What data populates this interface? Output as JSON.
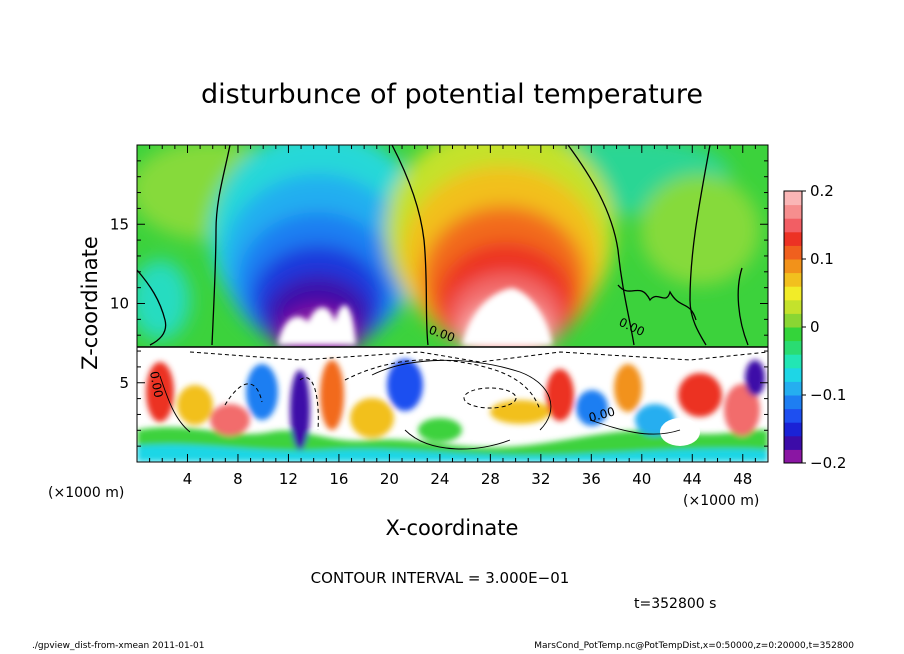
{
  "chart_data": {
    "type": "heatmap",
    "title": "disturbunce of potential temperature",
    "xlabel": "X-coordinate",
    "ylabel": "Z-coordinate",
    "x_unit_label": "(×1000 m)",
    "z_unit_label": "(×1000 m)",
    "xlim": [
      0,
      50
    ],
    "ylim": [
      0,
      20
    ],
    "x_ticks": [
      "4",
      "8",
      "12",
      "16",
      "20",
      "24",
      "28",
      "32",
      "36",
      "40",
      "44",
      "48"
    ],
    "y_ticks": [
      "5",
      "10",
      "15"
    ],
    "colorbar": {
      "range": [
        -0.2,
        0.2
      ],
      "tick_labels": [
        "0.2",
        "0.1",
        "0",
        "−0.1",
        "−0.2"
      ],
      "colors": [
        "#8a16a3",
        "#3c0ca8",
        "#1a22d6",
        "#1e4ff0",
        "#1e7ef2",
        "#25aef0",
        "#1ed6e6",
        "#22e6b4",
        "#2adc72",
        "#34d43a",
        "#8ad633",
        "#c4e22c",
        "#f2ec28",
        "#f2c01e",
        "#f2921a",
        "#f0601e",
        "#ec3224",
        "#f25e64",
        "#f68e8e",
        "#fab6b6"
      ]
    },
    "contour_labels": [
      "0.00",
      "0.00",
      "0.00",
      "0.00"
    ],
    "contour_interval_text": "CONTOUR INTERVAL = 3.000E−01",
    "time_text": "t=352800 s",
    "features": [
      {
        "name": "cold-anomaly",
        "x_center": 16,
        "z_center": 10,
        "value": -0.2
      },
      {
        "name": "warm-anomaly",
        "x_center": 29,
        "z_center": 10,
        "value": 0.2
      },
      {
        "name": "noisy-boundary-layer",
        "z_top": 7.3
      }
    ]
  },
  "footer": {
    "left": "./gpview_dist-from-xmean  2011-01-01",
    "right": "MarsCond_PotTemp.nc@PotTempDist,x=0:50000,z=0:20000,t=352800"
  }
}
